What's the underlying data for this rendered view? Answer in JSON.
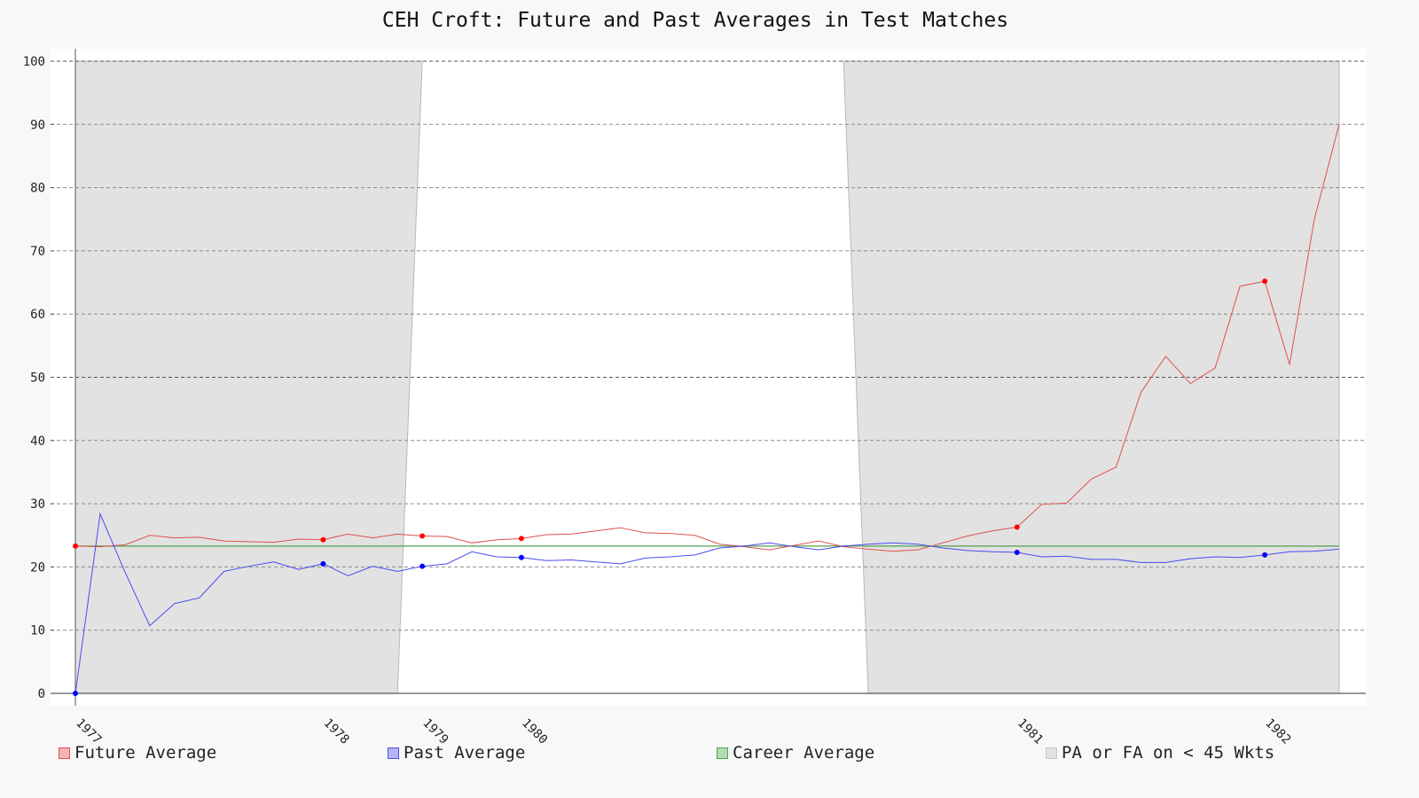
{
  "chart_data": {
    "type": "line",
    "title": "CEH Croft: Future and Past Averages in Test Matches",
    "xlabel": "",
    "ylabel": "",
    "ylim": [
      0,
      100
    ],
    "yticks": [
      0,
      10,
      20,
      30,
      40,
      50,
      60,
      70,
      80,
      90,
      100
    ],
    "grid": true,
    "legend_position": "bottom",
    "career_average": 23.3,
    "xtick_labels": [
      {
        "label": "1977",
        "match": 0
      },
      {
        "label": "1978",
        "match": 10
      },
      {
        "label": "1979",
        "match": 14
      },
      {
        "label": "1980",
        "match": 18
      },
      {
        "label": "1981",
        "match": 38
      },
      {
        "label": "1982",
        "match": 48
      }
    ],
    "shaded_regions": [
      {
        "x_bottom": [
          0,
          13
        ],
        "x_top": [
          0,
          14
        ]
      },
      {
        "x_bottom": [
          32,
          51
        ],
        "x_top": [
          31,
          51
        ]
      }
    ],
    "series": [
      {
        "name": "Future Average",
        "color": "#e05050",
        "values": [
          23.3,
          23.2,
          23.5,
          25.0,
          24.6,
          24.7,
          24.1,
          24.0,
          23.9,
          24.4,
          24.3,
          25.2,
          24.6,
          25.2,
          24.9,
          24.8,
          23.8,
          24.3,
          24.5,
          25.1,
          25.2,
          25.7,
          26.2,
          25.4,
          25.3,
          25.0,
          23.6,
          23.2,
          22.7,
          23.4,
          24.1,
          23.2,
          22.8,
          22.5,
          22.7,
          23.8,
          24.9,
          25.7,
          26.3,
          29.9,
          30.1,
          33.9,
          35.8,
          47.6,
          53.3,
          49.0,
          51.5,
          64.4,
          65.2,
          52.0,
          75.0,
          90.0
        ],
        "markers": [
          0,
          10,
          14,
          18,
          38,
          48
        ]
      },
      {
        "name": "Past Average",
        "color": "#4a4af0",
        "values": [
          0,
          28.4,
          19.2,
          10.7,
          14.2,
          15.1,
          19.3,
          20.1,
          20.8,
          19.6,
          20.5,
          18.6,
          20.1,
          19.3,
          20.1,
          20.5,
          22.4,
          21.6,
          21.5,
          21.0,
          21.1,
          20.8,
          20.5,
          21.4,
          21.6,
          21.9,
          23.0,
          23.3,
          23.8,
          23.2,
          22.7,
          23.3,
          23.6,
          23.8,
          23.6,
          23.0,
          22.6,
          22.4,
          22.3,
          21.6,
          21.7,
          21.2,
          21.2,
          20.7,
          20.7,
          21.3,
          21.6,
          21.5,
          21.9,
          22.4,
          22.5,
          22.8
        ],
        "markers": [
          0,
          10,
          14,
          18,
          38,
          48
        ]
      }
    ],
    "legend": [
      {
        "label": "Future Average",
        "fill": "#f4b4b4",
        "stroke": "#e05050"
      },
      {
        "label": "Past Average",
        "fill": "#b4b4f4",
        "stroke": "#5050e0"
      },
      {
        "label": "Career Average",
        "fill": "#b4dcb4",
        "stroke": "#50a050"
      },
      {
        "label": "PA or FA on < 45 Wkts",
        "fill": "#e2e2e2",
        "stroke": "#c8c8c8"
      }
    ]
  }
}
